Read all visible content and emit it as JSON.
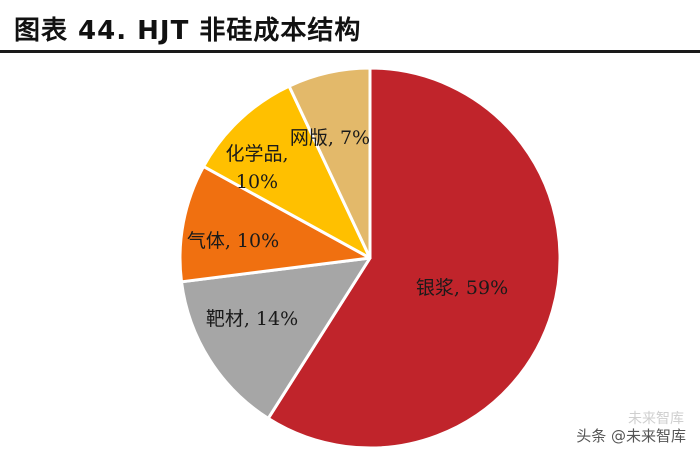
{
  "title": "图表 44. HJT 非硅成本结构",
  "watermark": {
    "faint": "未来智库",
    "main": "头条 @未来智库"
  },
  "chart_data": {
    "type": "pie",
    "title": "图表 44. HJT 非硅成本结构",
    "start": "12 o'clock",
    "direction": "clockwise",
    "slices": [
      {
        "label": "银浆",
        "value": 59,
        "display": "银浆, 59%",
        "color": "#c0242b"
      },
      {
        "label": "靶材",
        "value": 14,
        "display": "靶材, 14%",
        "color": "#a6a6a6"
      },
      {
        "label": "气体",
        "value": 10,
        "display": "气体, 10%",
        "color": "#f07010"
      },
      {
        "label": "化学品",
        "value": 10,
        "display_lines": [
          "化学品,",
          "10%"
        ],
        "color": "#ffc000"
      },
      {
        "label": "网版",
        "value": 7,
        "display": "网版, 7%",
        "color": "#e3b96a"
      }
    ]
  }
}
